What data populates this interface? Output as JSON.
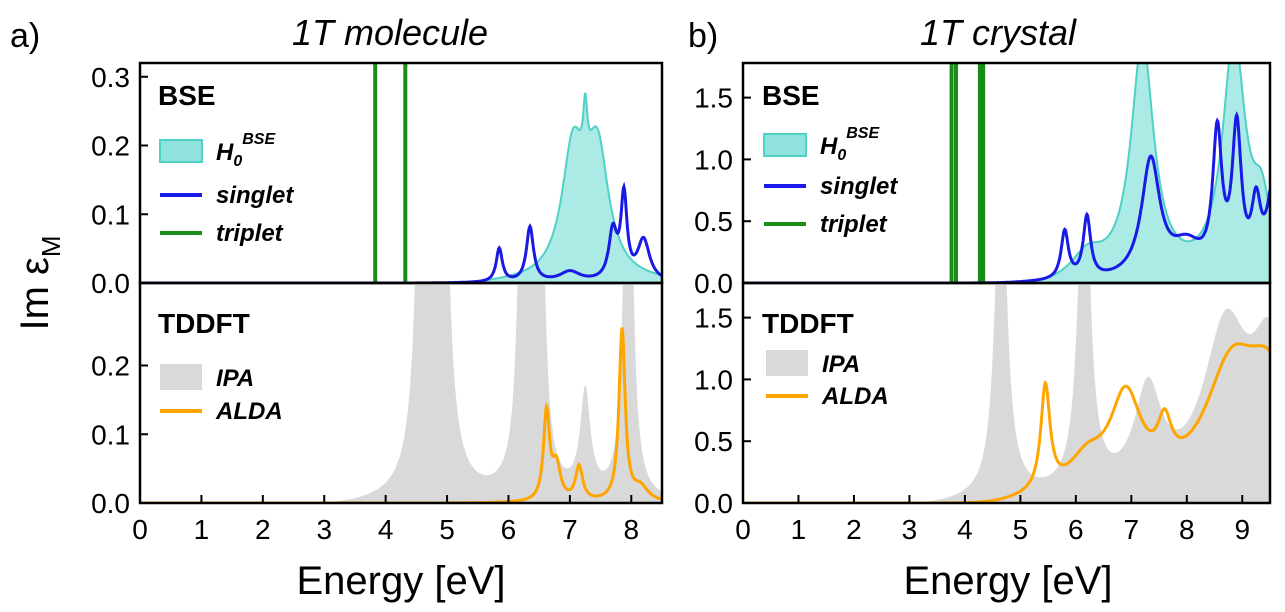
{
  "figure": {
    "ylabel_main": "Im ε",
    "ylabel_sub": "M",
    "colors": {
      "h0_fill": "#8fe3dc",
      "h0_line": "#4fd1c5",
      "singlet": "#1a1ae6",
      "triplet": "#1a8c1a",
      "ipa": "#d9d9d9",
      "alda": "#ffa500",
      "axis": "#000000"
    }
  },
  "chart_data": [
    {
      "id": "a",
      "panel_label": "a)",
      "title": "1T molecule",
      "type": "line",
      "xlabel": "Energy [eV]",
      "xlim": [
        0,
        8.5
      ],
      "xticks": [
        "0",
        "1",
        "2",
        "3",
        "4",
        "5",
        "6",
        "7",
        "8"
      ],
      "top": {
        "label": "BSE",
        "ylim": [
          0,
          0.32
        ],
        "yticks": [
          "0.0",
          "0.1",
          "0.2",
          "0.3"
        ],
        "legend": {
          "h0_main": "H",
          "h0_sub": "0",
          "h0_sup": "BSE",
          "singlet": "singlet",
          "triplet": "triplet"
        },
        "triplet_energies": [
          3.83,
          4.32
        ],
        "h0_peaks": [
          [
            7.05,
            0.18,
            0.22
          ],
          [
            7.45,
            0.18,
            0.22
          ],
          [
            7.25,
            0.08,
            0.04
          ]
        ],
        "singlet_peaks": [
          [
            5.85,
            0.05,
            0.06
          ],
          [
            6.35,
            0.08,
            0.07
          ],
          [
            7.0,
            0.015,
            0.2
          ],
          [
            7.7,
            0.07,
            0.08
          ],
          [
            7.88,
            0.12,
            0.06
          ],
          [
            8.2,
            0.06,
            0.12
          ]
        ]
      },
      "bottom": {
        "label": "TDDFT",
        "ylim": [
          0,
          0.32
        ],
        "yticks": [
          "0.0",
          "0.1",
          "0.2"
        ],
        "legend": {
          "ipa": "IPA",
          "alda": "ALDA"
        },
        "ipa_peaks": [
          [
            4.62,
            1.0,
            0.09
          ],
          [
            4.9,
            1.0,
            0.09
          ],
          [
            6.25,
            0.9,
            0.07
          ],
          [
            6.5,
            0.8,
            0.07
          ],
          [
            7.25,
            0.15,
            0.1
          ],
          [
            7.95,
            0.8,
            0.07
          ]
        ],
        "alda_peaks": [
          [
            6.62,
            0.13,
            0.06
          ],
          [
            6.78,
            0.05,
            0.08
          ],
          [
            7.15,
            0.05,
            0.07
          ],
          [
            7.85,
            0.25,
            0.06
          ],
          [
            8.15,
            0.02,
            0.15
          ]
        ]
      }
    },
    {
      "id": "b",
      "panel_label": "b)",
      "title": "1T crystal",
      "type": "line",
      "xlabel": "Energy [eV]",
      "xlim": [
        0,
        9.5
      ],
      "xticks": [
        "0",
        "1",
        "2",
        "3",
        "4",
        "5",
        "6",
        "7",
        "8",
        "9"
      ],
      "top": {
        "label": "BSE",
        "ylim": [
          0,
          1.78
        ],
        "yticks": [
          "0.0",
          "0.5",
          "1.0",
          "1.5"
        ],
        "legend": {
          "h0_main": "H",
          "h0_sub": "0",
          "h0_sup": "BSE",
          "singlet": "singlet",
          "triplet": "triplet"
        },
        "triplet_energies": [
          3.76,
          3.84,
          4.27,
          4.33
        ],
        "h0_peaks": [
          [
            7.2,
            1.9,
            0.25
          ],
          [
            8.85,
            1.9,
            0.25
          ],
          [
            6.2,
            0.2,
            0.35
          ],
          [
            9.35,
            0.5,
            0.2
          ]
        ],
        "singlet_peaks": [
          [
            5.8,
            0.4,
            0.08
          ],
          [
            6.2,
            0.5,
            0.08
          ],
          [
            7.35,
            0.95,
            0.2
          ],
          [
            8.0,
            0.25,
            0.35
          ],
          [
            8.55,
            1.1,
            0.1
          ],
          [
            8.9,
            1.15,
            0.1
          ],
          [
            9.25,
            0.5,
            0.1
          ],
          [
            9.6,
            0.9,
            0.15
          ]
        ]
      },
      "bottom": {
        "label": "TDDFT",
        "ylim": [
          0,
          1.78
        ],
        "yticks": [
          "0.0",
          "0.5",
          "1.0",
          "1.5"
        ],
        "legend": {
          "ipa": "IPA",
          "alda": "ALDA"
        },
        "ipa_peaks": [
          [
            4.65,
            3.0,
            0.12
          ],
          [
            6.15,
            3.0,
            0.12
          ],
          [
            7.3,
            0.8,
            0.3
          ],
          [
            8.7,
            1.3,
            0.5
          ],
          [
            9.5,
            1.1,
            0.4
          ]
        ],
        "alda_peaks": [
          [
            5.45,
            0.88,
            0.1
          ],
          [
            6.9,
            0.75,
            0.35
          ],
          [
            6.2,
            0.25,
            0.4
          ],
          [
            7.6,
            0.35,
            0.15
          ],
          [
            8.8,
            0.95,
            0.6
          ],
          [
            9.5,
            0.8,
            0.5
          ]
        ]
      }
    }
  ]
}
